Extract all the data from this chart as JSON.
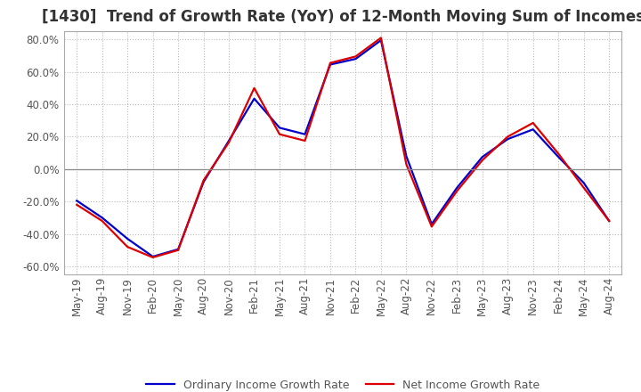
{
  "title": "[1430]  Trend of Growth Rate (YoY) of 12-Month Moving Sum of Incomes",
  "x_labels": [
    "May-19",
    "Aug-19",
    "Nov-19",
    "Feb-20",
    "May-20",
    "Aug-20",
    "Nov-20",
    "Feb-21",
    "May-21",
    "Aug-21",
    "Nov-21",
    "Feb-22",
    "May-22",
    "Aug-22",
    "Nov-22",
    "Feb-23",
    "May-23",
    "Aug-23",
    "Nov-23",
    "Feb-24",
    "May-24",
    "Aug-24"
  ],
  "ordinary_income": [
    -0.195,
    -0.3,
    -0.43,
    -0.54,
    -0.495,
    -0.08,
    0.175,
    0.435,
    0.255,
    0.215,
    0.645,
    0.68,
    0.795,
    0.08,
    -0.34,
    -0.115,
    0.075,
    0.185,
    0.245,
    0.075,
    -0.085,
    -0.32
  ],
  "net_income": [
    -0.22,
    -0.32,
    -0.48,
    -0.545,
    -0.5,
    -0.07,
    0.165,
    0.5,
    0.215,
    0.175,
    0.655,
    0.695,
    0.81,
    0.03,
    -0.355,
    -0.135,
    0.055,
    0.2,
    0.285,
    0.095,
    -0.115,
    -0.32
  ],
  "ordinary_color": "#0000cc",
  "net_color": "#dd0000",
  "ylim": [
    -0.65,
    0.85
  ],
  "yticks": [
    -0.6,
    -0.4,
    -0.2,
    0.0,
    0.2,
    0.4,
    0.6,
    0.8
  ],
  "background_color": "#ffffff",
  "grid_color": "#bbbbbb",
  "title_fontsize": 12,
  "tick_fontsize": 8.5,
  "legend_labels": [
    "Ordinary Income Growth Rate",
    "Net Income Growth Rate"
  ]
}
